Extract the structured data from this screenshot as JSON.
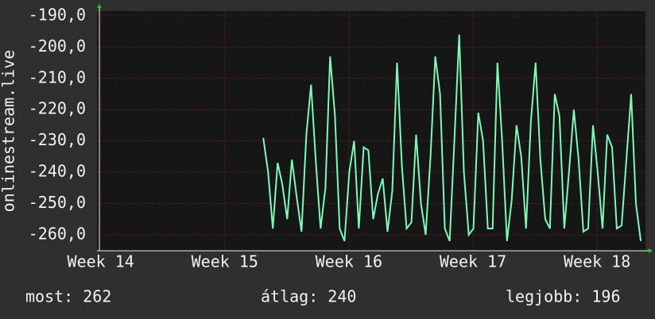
{
  "chart_data": {
    "type": "line",
    "y_label": "onlinestream.live",
    "x": [
      15.31,
      15.349,
      15.387,
      15.426,
      15.464,
      15.503,
      15.541,
      15.58,
      15.618,
      15.657,
      15.695,
      15.734,
      15.772,
      15.811,
      15.849,
      15.888,
      15.926,
      15.965,
      16.003,
      16.042,
      16.08,
      16.119,
      16.157,
      16.196,
      16.234,
      16.273,
      16.311,
      16.35,
      16.388,
      16.427,
      16.465,
      16.504,
      16.542,
      16.581,
      16.619,
      16.658,
      16.696,
      16.735,
      16.773,
      16.812,
      16.85,
      16.889,
      16.927,
      16.966,
      17.004,
      17.043,
      17.081,
      17.12,
      17.158,
      17.197,
      17.235,
      17.274,
      17.312,
      17.351,
      17.389,
      17.428,
      17.466,
      17.505,
      17.543,
      17.582,
      17.62,
      17.659,
      17.697,
      17.736,
      17.774,
      17.813,
      17.851,
      17.89,
      17.928,
      17.967,
      18.005,
      18.044,
      18.082,
      18.121,
      18.159,
      18.198,
      18.236,
      18.275,
      18.313,
      18.352
    ],
    "series": [
      {
        "color": "#7dfbb8",
        "values": [
          -229,
          -240,
          -258,
          -237,
          -244,
          -255,
          -236,
          -248,
          -259,
          -228,
          -212,
          -237,
          -258,
          -245,
          -203,
          -222,
          -258,
          -262,
          -240,
          -230,
          -258,
          -232,
          -233,
          -255,
          -247,
          -242,
          -259,
          -246,
          -205,
          -238,
          -258,
          -256,
          -228,
          -250,
          -260,
          -235,
          -203,
          -215,
          -258,
          -262,
          -230,
          -196,
          -240,
          -260,
          -258,
          -221,
          -230,
          -258,
          -258,
          -205,
          -230,
          -262,
          -249,
          -225,
          -235,
          -258,
          -224,
          -205,
          -236,
          -255,
          -258,
          -215,
          -222,
          -258,
          -240,
          -220,
          -236,
          -259,
          -258,
          -225,
          -240,
          -258,
          -228,
          -232,
          -258,
          -257,
          -236,
          -215,
          -250,
          -262
        ]
      }
    ],
    "xlim": [
      13.97,
      18.39
    ],
    "ylim": [
      -265.1,
      -188.5
    ],
    "xticks": [
      {
        "value": 14,
        "label": "Week 14"
      },
      {
        "value": 15,
        "label": "Week 15"
      },
      {
        "value": 16,
        "label": "Week 16"
      },
      {
        "value": 17,
        "label": "Week 17"
      },
      {
        "value": 18,
        "label": "Week 18"
      }
    ],
    "yticks": [
      {
        "value": -190,
        "label": "-190,0"
      },
      {
        "value": -200,
        "label": "-200,0"
      },
      {
        "value": -210,
        "label": "-210,0"
      },
      {
        "value": -220,
        "label": "-220,0"
      },
      {
        "value": -230,
        "label": "-230,0"
      },
      {
        "value": -240,
        "label": "-240,0"
      },
      {
        "value": -250,
        "label": "-250,0"
      },
      {
        "value": -260,
        "label": "-260,0"
      }
    ],
    "grid": true,
    "footer": [
      "most: 262",
      "átlag: 240",
      "legjobb: 196"
    ]
  }
}
